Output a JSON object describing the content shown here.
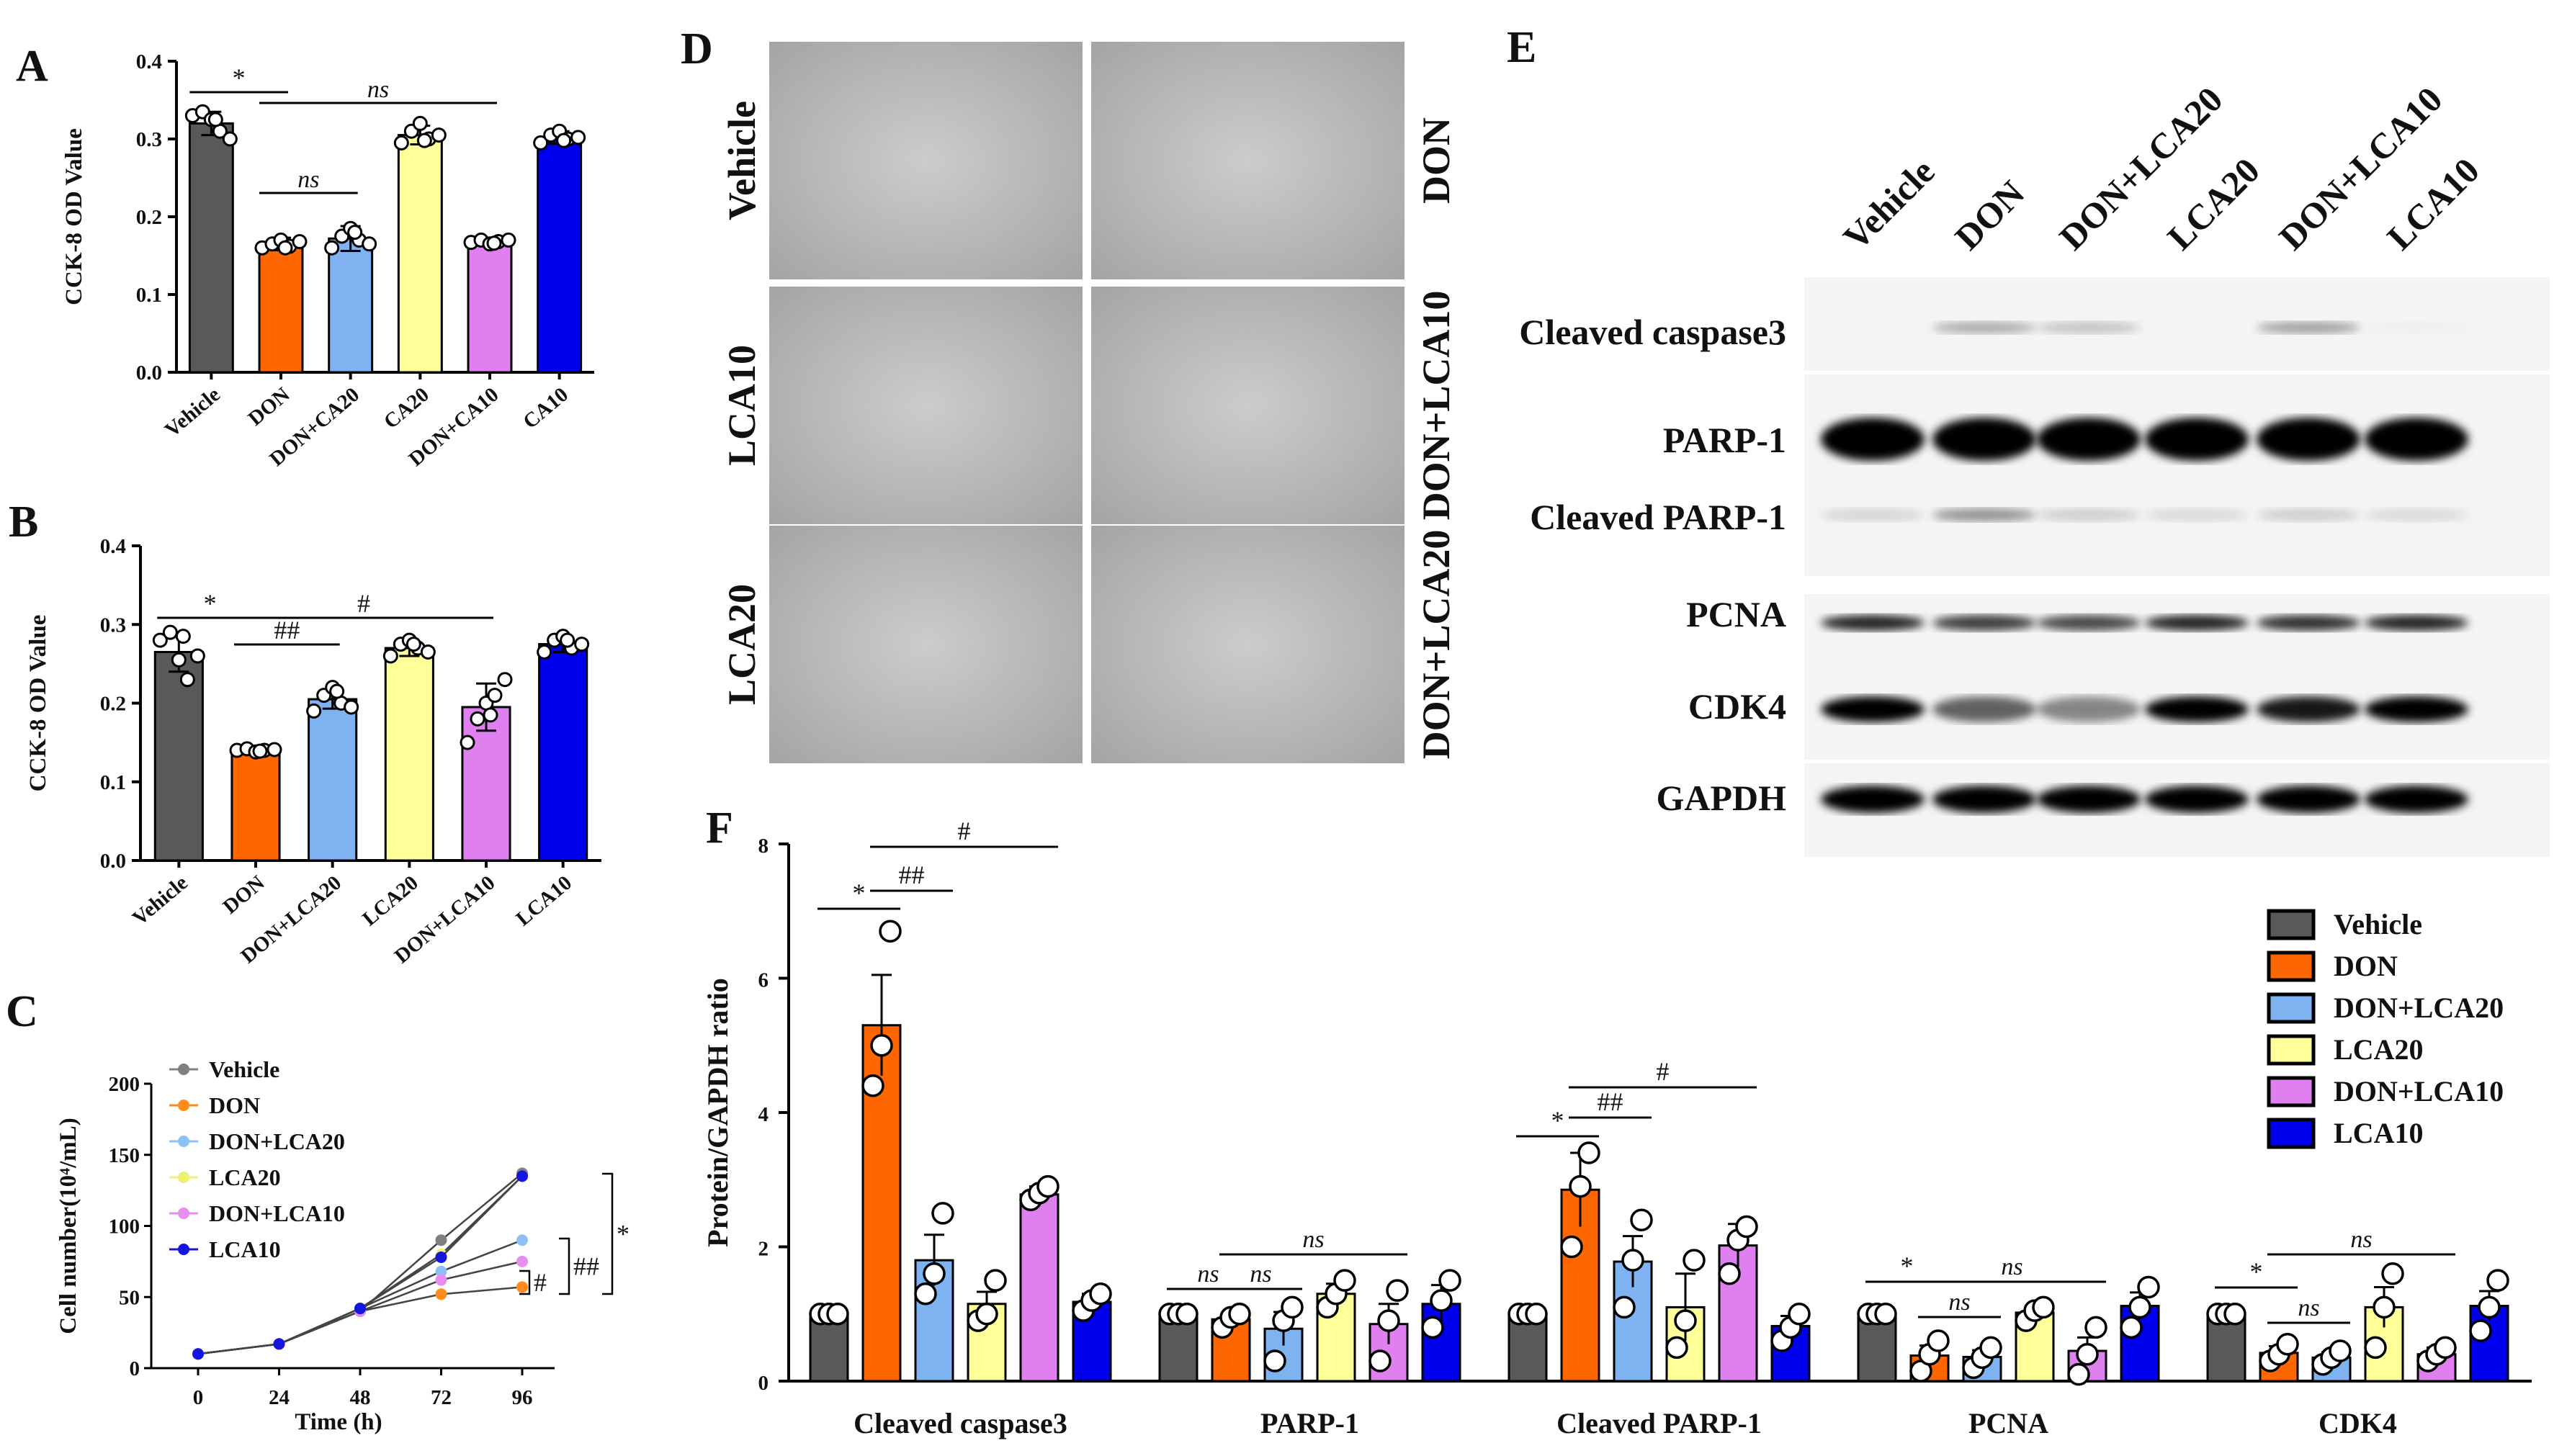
{
  "panels": {
    "A": "A",
    "B": "B",
    "C": "C",
    "D": "D",
    "E": "E",
    "F": "F"
  },
  "colors": {
    "Vehicle": "#595959",
    "DON": "#ff6600",
    "DON+LCA20": "#7fb2f0",
    "LCA20": "#ffff99",
    "DON+LCA10": "#e080f0",
    "LCA10": "#0000ee",
    "CA20": "#ffff99",
    "DON+CA20": "#7fb2f0",
    "DON+CA10": "#e080f0",
    "CA10": "#0000ee"
  },
  "chart_data": [
    {
      "panel": "A",
      "type": "bar",
      "ylabel": "CCK-8 OD Value",
      "ylim": [
        0,
        0.4
      ],
      "yticks": [
        "0.0",
        "0.1",
        "0.2",
        "0.3",
        "0.4"
      ],
      "categories": [
        "Vehicle",
        "DON",
        "DON+CA20",
        "CA20",
        "DON+CA10",
        "CA10"
      ],
      "values": [
        0.32,
        0.165,
        0.172,
        0.305,
        0.168,
        0.302
      ],
      "errors": [
        0.015,
        0.008,
        0.016,
        0.012,
        0.004,
        0.008
      ],
      "points": [
        [
          0.33,
          0.335,
          0.325,
          0.31,
          0.3,
          0.325
        ],
        [
          0.16,
          0.165,
          0.17,
          0.162,
          0.168,
          0.16
        ],
        [
          0.16,
          0.175,
          0.185,
          0.17,
          0.165,
          0.18
        ],
        [
          0.295,
          0.31,
          0.32,
          0.3,
          0.305,
          0.298
        ],
        [
          0.167,
          0.17,
          0.165,
          0.168,
          0.17,
          0.166
        ],
        [
          0.295,
          0.305,
          0.31,
          0.3,
          0.302,
          0.298
        ]
      ],
      "annotations": [
        "*",
        "ns",
        "ns"
      ]
    },
    {
      "panel": "B",
      "type": "bar",
      "ylabel": "CCK-8 OD Value",
      "ylim": [
        0,
        0.4
      ],
      "yticks": [
        "0.0",
        "0.1",
        "0.2",
        "0.3",
        "0.4"
      ],
      "categories": [
        "Vehicle",
        "DON",
        "DON+LCA20",
        "LCA20",
        "DON+LCA10",
        "LCA10"
      ],
      "values": [
        0.265,
        0.14,
        0.205,
        0.27,
        0.195,
        0.275
      ],
      "errors": [
        0.025,
        0.004,
        0.012,
        0.01,
        0.03,
        0.01
      ],
      "points": [
        [
          0.28,
          0.29,
          0.255,
          0.23,
          0.26,
          0.285
        ],
        [
          0.14,
          0.142,
          0.138,
          0.14,
          0.141,
          0.139
        ],
        [
          0.19,
          0.21,
          0.22,
          0.2,
          0.195,
          0.215
        ],
        [
          0.26,
          0.275,
          0.28,
          0.27,
          0.265,
          0.275
        ],
        [
          0.15,
          0.18,
          0.2,
          0.21,
          0.23,
          0.185
        ],
        [
          0.265,
          0.28,
          0.285,
          0.27,
          0.275,
          0.28
        ]
      ],
      "annotations": [
        "*",
        "##",
        "#"
      ]
    },
    {
      "panel": "C",
      "type": "line",
      "xlabel": "Time (h)",
      "ylabel": "Cell number(10⁴/mL)",
      "ylim": [
        0,
        200
      ],
      "x": [
        0,
        24,
        48,
        72,
        96
      ],
      "xticks": [
        "0",
        "24",
        "48",
        "72",
        "96"
      ],
      "yticks": [
        "0",
        "50",
        "100",
        "150",
        "200"
      ],
      "series": [
        {
          "name": "Vehicle",
          "values": [
            10,
            17,
            40,
            90,
            137
          ]
        },
        {
          "name": "DON",
          "values": [
            10,
            17,
            40,
            52,
            57
          ]
        },
        {
          "name": "DON+LCA20",
          "values": [
            10,
            17,
            42,
            68,
            90
          ]
        },
        {
          "name": "LCA20",
          "values": [
            10,
            17,
            42,
            80,
            135
          ]
        },
        {
          "name": "DON+LCA10",
          "values": [
            10,
            17,
            40,
            62,
            75
          ]
        },
        {
          "name": "LCA10",
          "values": [
            10,
            17,
            42,
            78,
            135
          ]
        }
      ],
      "annotations": [
        "#",
        "##",
        "*"
      ]
    },
    {
      "panel": "F",
      "type": "bar",
      "ylabel": "Protein/GAPDH  ratio",
      "ylim": [
        0,
        8
      ],
      "yticks": [
        "0",
        "2",
        "4",
        "6",
        "8"
      ],
      "categories": [
        "Cleaved caspase3",
        "PARP-1",
        "Cleaved PARP-1",
        "PCNA",
        "CDK4"
      ],
      "series": [
        {
          "name": "Vehicle",
          "values": [
            1.0,
            1.0,
            1.0,
            1.0,
            1.0
          ],
          "errors": [
            0.03,
            0.03,
            0.03,
            0.03,
            0.03
          ]
        },
        {
          "name": "DON",
          "values": [
            5.3,
            0.92,
            2.85,
            0.38,
            0.42
          ],
          "errors": [
            0.75,
            0.08,
            0.55,
            0.15,
            0.1
          ]
        },
        {
          "name": "DON+LCA20",
          "values": [
            1.8,
            0.78,
            1.78,
            0.36,
            0.35
          ],
          "errors": [
            0.38,
            0.25,
            0.38,
            0.1,
            0.08
          ]
        },
        {
          "name": "LCA20",
          "values": [
            1.15,
            1.3,
            1.1,
            1.02,
            1.1
          ],
          "errors": [
            0.18,
            0.15,
            0.5,
            0.08,
            0.3
          ]
        },
        {
          "name": "DON+LCA10",
          "values": [
            2.78,
            0.85,
            2.02,
            0.45,
            0.4
          ],
          "errors": [
            0.12,
            0.3,
            0.32,
            0.2,
            0.1
          ]
        },
        {
          "name": "LCA10",
          "values": [
            1.18,
            1.15,
            0.82,
            1.12,
            1.12
          ],
          "errors": [
            0.12,
            0.28,
            0.15,
            0.2,
            0.22
          ]
        }
      ],
      "points": [
        [
          [
            1.0,
            1.0,
            1.0
          ],
          [
            4.4,
            5.0,
            6.7
          ],
          [
            1.3,
            1.6,
            2.5
          ],
          [
            0.9,
            1.0,
            1.5
          ],
          [
            2.7,
            2.8,
            2.9
          ],
          [
            1.05,
            1.2,
            1.3
          ]
        ],
        [
          [
            1.0,
            1.0,
            1.0
          ],
          [
            0.8,
            0.95,
            1.0
          ],
          [
            0.3,
            0.9,
            1.1
          ],
          [
            1.1,
            1.3,
            1.5
          ],
          [
            0.3,
            0.9,
            1.35
          ],
          [
            0.8,
            1.2,
            1.5
          ]
        ],
        [
          [
            1.0,
            1.0,
            1.0
          ],
          [
            2.0,
            2.9,
            3.4
          ],
          [
            1.1,
            1.8,
            2.4
          ],
          [
            0.5,
            0.9,
            1.8
          ],
          [
            1.6,
            2.1,
            2.3
          ],
          [
            0.6,
            0.8,
            1.0
          ]
        ],
        [
          [
            1.0,
            1.0,
            1.0
          ],
          [
            0.15,
            0.4,
            0.6
          ],
          [
            0.2,
            0.35,
            0.5
          ],
          [
            0.9,
            1.05,
            1.1
          ],
          [
            0.1,
            0.4,
            0.8
          ],
          [
            0.8,
            1.1,
            1.4
          ]
        ],
        [
          [
            1.0,
            1.0,
            1.0
          ],
          [
            0.3,
            0.4,
            0.55
          ],
          [
            0.25,
            0.35,
            0.45
          ],
          [
            0.5,
            1.1,
            1.6
          ],
          [
            0.3,
            0.4,
            0.5
          ],
          [
            0.75,
            1.1,
            1.5
          ]
        ]
      ],
      "legend_position": "right",
      "annotations": [
        [
          "*",
          "##",
          "#"
        ],
        [
          "ns",
          "ns",
          "ns"
        ],
        [
          "*",
          "##",
          "#"
        ],
        [
          "*",
          "ns",
          "ns"
        ],
        [
          "*",
          "ns",
          "ns"
        ]
      ]
    }
  ],
  "micrographs": {
    "left_labels": [
      "Vehicle",
      "LCA10",
      "LCA20"
    ],
    "right_labels": [
      "DON",
      "DON+LCA10",
      "DON+LCA20"
    ]
  },
  "western": {
    "lanes": [
      "Vehicle",
      "DON",
      "DON+LCA20",
      "LCA20",
      "DON+LCA10",
      "LCA10"
    ],
    "proteins": [
      "Cleaved caspase3",
      "PARP-1",
      "Cleaved PARP-1",
      "PCNA",
      "CDK4",
      "GAPDH"
    ],
    "intensity": [
      [
        0.0,
        0.3,
        0.2,
        0.0,
        0.35,
        0.02
      ],
      [
        1.0,
        1.0,
        1.0,
        1.0,
        1.0,
        1.0
      ],
      [
        0.12,
        0.4,
        0.15,
        0.1,
        0.15,
        0.1
      ],
      [
        0.85,
        0.75,
        0.7,
        0.85,
        0.8,
        0.85
      ],
      [
        1.0,
        0.6,
        0.45,
        1.0,
        0.9,
        1.0
      ],
      [
        1.0,
        1.0,
        1.0,
        1.0,
        1.0,
        1.0
      ]
    ]
  }
}
